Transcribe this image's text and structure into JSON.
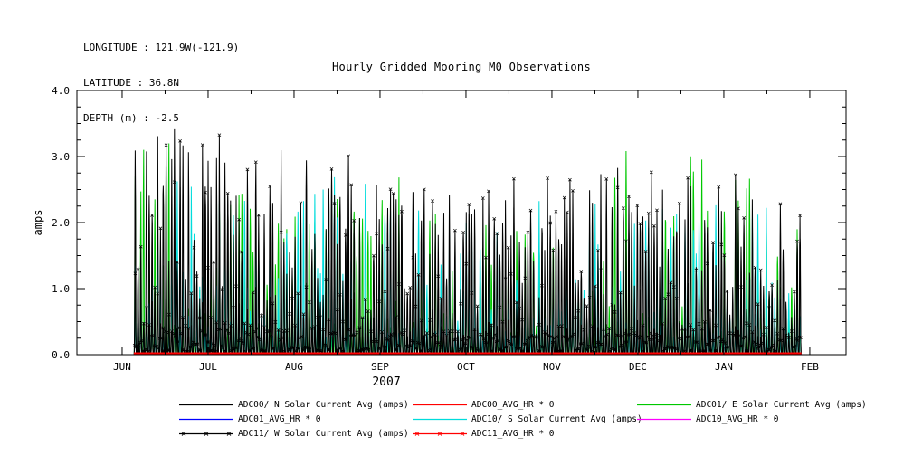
{
  "header": {
    "line1": "LONGITUDE : 121.9W(-121.9)",
    "line2": "LATITUDE : 36.8N",
    "line3": "DEPTH (m) : -2.5"
  },
  "title": "Hourly Gridded Mooring M0 Observations",
  "chart_data": {
    "type": "line",
    "title": "Hourly Gridded Mooring M0 Observations",
    "xlabel": "2007",
    "ylabel": "amps",
    "ylim": [
      0.0,
      4.0
    ],
    "ytick_labels": [
      "0.0",
      "1.0",
      "2.0",
      "3.0",
      "4.0"
    ],
    "ytick_values": [
      0.0,
      1.0,
      2.0,
      3.0,
      4.0
    ],
    "x_tick_labels": [
      "JUN",
      "JUL",
      "AUG",
      "SEP",
      "OCT",
      "NOV",
      "DEC",
      "JAN",
      "FEB"
    ],
    "grid": false,
    "legend_position": "bottom",
    "note": "Dense hourly diurnal solar-current spikes rising from 0 to a monthly peak envelope between mid-JUN 2007 and FEB 2008; all *_AVG_HR series are constant 0 (flat red line on the baseline).",
    "data_span_axis_fraction": [
      0.074,
      0.942
    ],
    "series": [
      {
        "name": "ADC00/ N Solar Current Avg (amps)",
        "color": "#000000",
        "markers": false,
        "monthly_peak_envelope": [
          3.65,
          3.6,
          3.55,
          3.2,
          2.6,
          2.9,
          3.1,
          3.3,
          2.3
        ]
      },
      {
        "name": "ADC00_AVG_HR * 0",
        "color": "#ff0000",
        "markers": false,
        "constant": 0
      },
      {
        "name": "ADC01/ E Solar Current Avg (amps)",
        "color": "#00c800",
        "markers": false,
        "monthly_peak_envelope": [
          3.4,
          3.2,
          2.6,
          2.9,
          2.1,
          2.3,
          3.65,
          3.3,
          1.8
        ]
      },
      {
        "name": "ADC01_AVG_HR * 0",
        "color": "#0000ff",
        "markers": false,
        "constant": 0
      },
      {
        "name": "ADC10/ S Solar Current Avg (amps)",
        "color": "#00dcdc",
        "markers": false,
        "monthly_peak_envelope": [
          3.3,
          2.9,
          2.6,
          2.9,
          2.2,
          2.4,
          2.6,
          2.9,
          1.9
        ]
      },
      {
        "name": "ADC10_AVG_HR * 0",
        "color": "#ff00ff",
        "markers": false,
        "constant": 0
      },
      {
        "name": "ADC11/ W Solar Current Avg (amps)",
        "color": "#000000",
        "markers": true,
        "monthly_peak_envelope": [
          3.65,
          3.6,
          3.55,
          3.2,
          2.6,
          2.9,
          3.1,
          3.3,
          2.3
        ]
      },
      {
        "name": "ADC11_AVG_HR * 0",
        "color": "#ff0000",
        "markers": true,
        "constant": 0
      }
    ]
  }
}
